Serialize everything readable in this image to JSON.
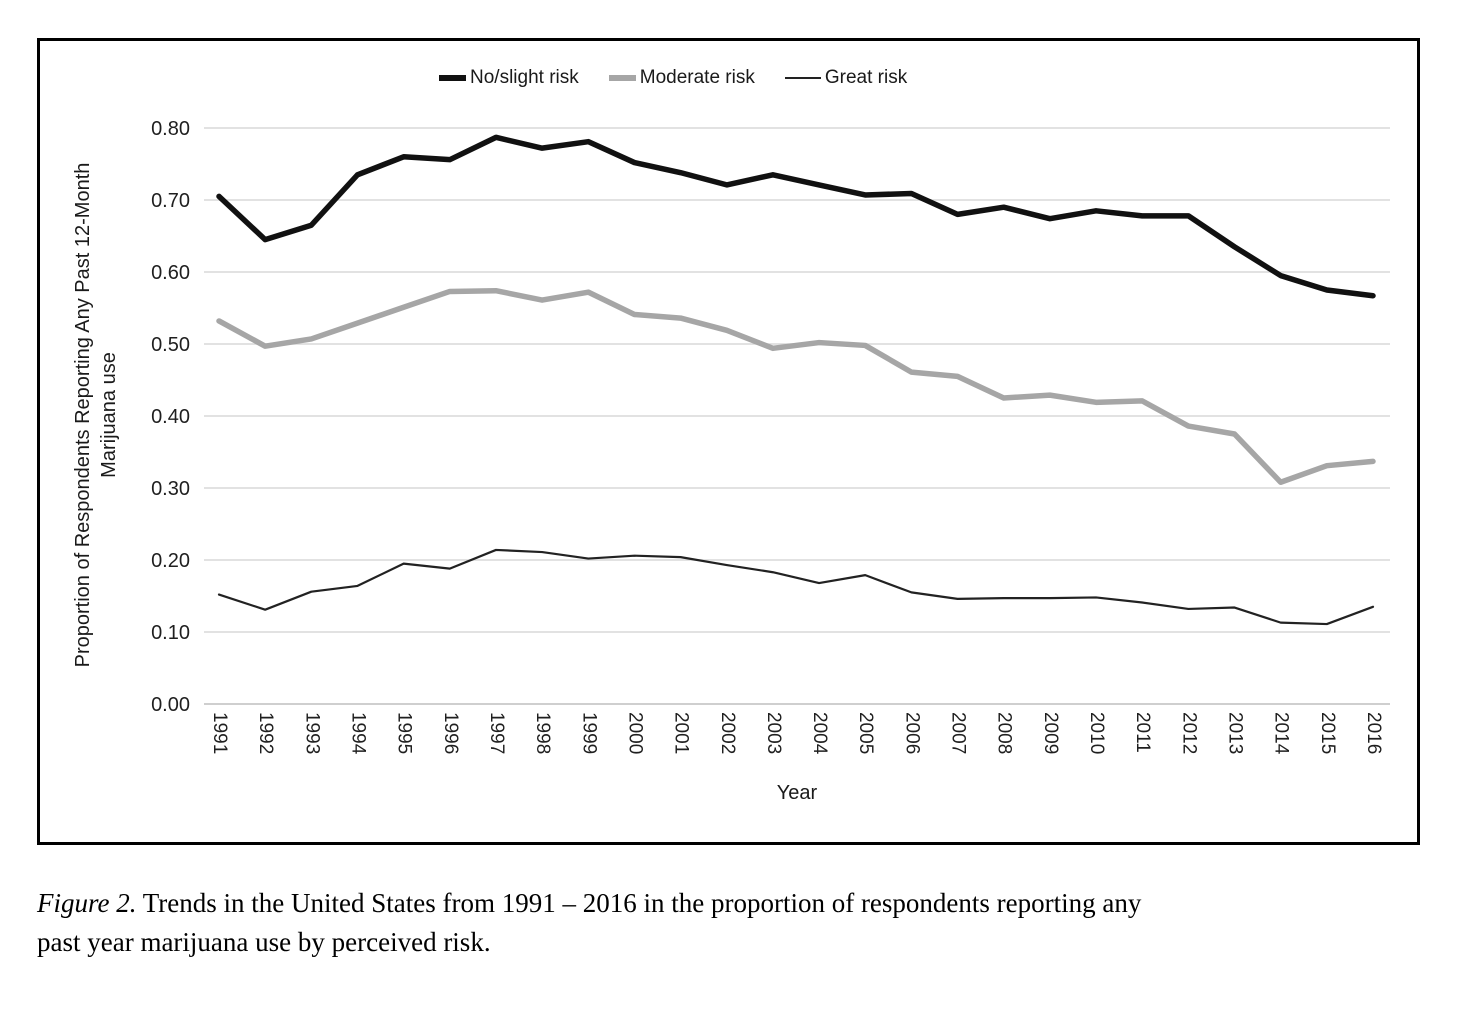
{
  "figure": {
    "caption": {
      "label": "Figure 2.",
      "line1": "Trends in the United States from 1991 – 2016 in the proportion of respondents reporting any",
      "line2": "past year marijuana use by perceived risk."
    }
  },
  "chart_data": {
    "type": "line",
    "title": "",
    "xlabel": "Year",
    "ylabel": "Proportion of Respondents Reporting Any Past 12-Month Marijuana use",
    "ylabel_lines": [
      "Proportion of Respondents Reporting Any Past 12-Month",
      "Marijuana use"
    ],
    "ylim": [
      0.0,
      0.8
    ],
    "ytick_labels": [
      "0.00",
      "0.10",
      "0.20",
      "0.30",
      "0.40",
      "0.50",
      "0.60",
      "0.70",
      "0.80"
    ],
    "grid": "horizontal",
    "legend_position": "top-center",
    "x": [
      1991,
      1992,
      1993,
      1994,
      1995,
      1996,
      1997,
      1998,
      1999,
      2000,
      2001,
      2002,
      2003,
      2004,
      2005,
      2006,
      2007,
      2008,
      2009,
      2010,
      2011,
      2012,
      2013,
      2014,
      2015,
      2016
    ],
    "series": [
      {
        "name": "No/slight risk",
        "color": "#111111",
        "line_width": 5.5,
        "values": [
          0.705,
          0.645,
          0.665,
          0.735,
          0.76,
          0.756,
          0.787,
          0.772,
          0.781,
          0.752,
          0.738,
          0.721,
          0.735,
          0.721,
          0.707,
          0.709,
          0.68,
          0.69,
          0.674,
          0.685,
          0.678,
          0.678,
          0.635,
          0.595,
          0.575,
          0.567
        ]
      },
      {
        "name": "Moderate risk",
        "color": "#a6a6a6",
        "line_width": 5.5,
        "values": [
          0.532,
          0.497,
          0.507,
          0.529,
          0.551,
          0.573,
          0.574,
          0.561,
          0.572,
          0.541,
          0.536,
          0.519,
          0.494,
          0.502,
          0.498,
          0.461,
          0.455,
          0.425,
          0.429,
          0.419,
          0.421,
          0.386,
          0.375,
          0.308,
          0.331,
          0.337
        ]
      },
      {
        "name": "Great risk",
        "color": "#222222",
        "line_width": 2.2,
        "values": [
          0.152,
          0.131,
          0.156,
          0.164,
          0.195,
          0.188,
          0.214,
          0.211,
          0.202,
          0.206,
          0.204,
          0.193,
          0.183,
          0.168,
          0.179,
          0.155,
          0.146,
          0.147,
          0.147,
          0.148,
          0.141,
          0.132,
          0.134,
          0.113,
          0.111,
          0.135
        ]
      }
    ]
  }
}
